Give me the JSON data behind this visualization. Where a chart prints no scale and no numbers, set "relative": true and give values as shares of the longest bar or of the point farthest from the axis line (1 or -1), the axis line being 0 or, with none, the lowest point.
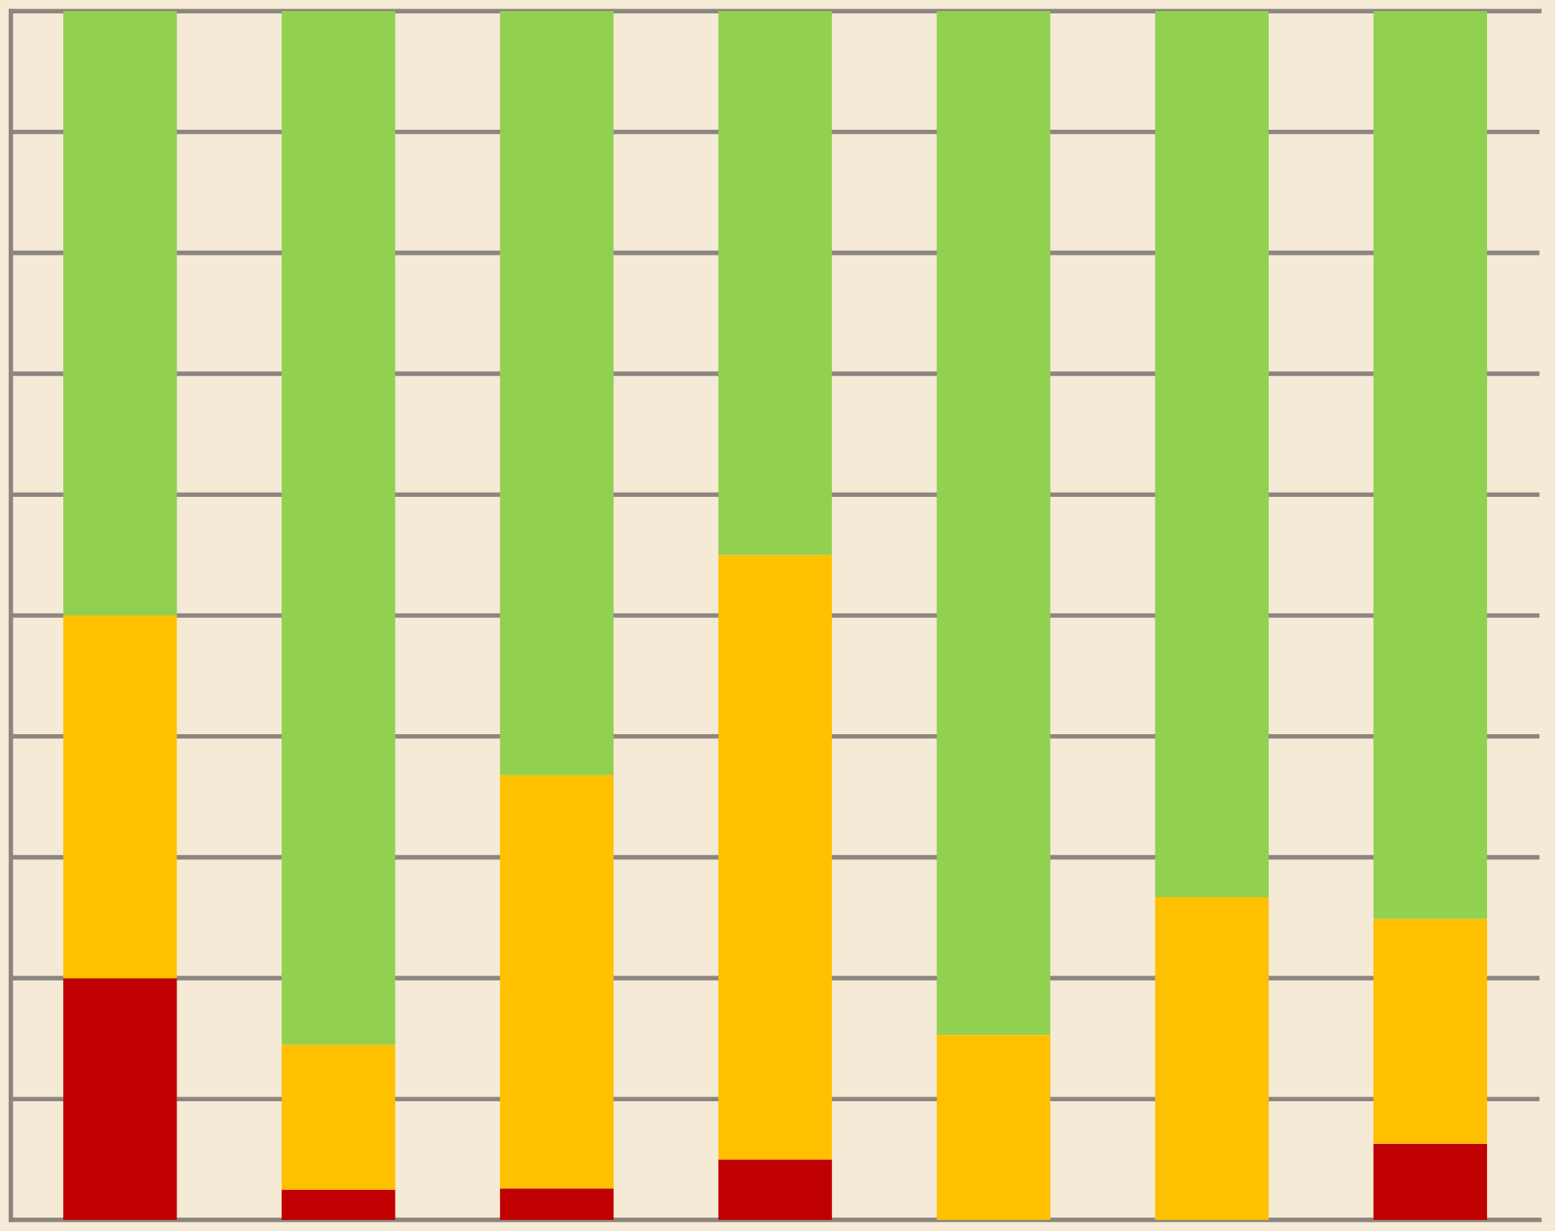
{
  "chart_data": {
    "type": "bar",
    "stacked": true,
    "relative": true,
    "categories": [
      null,
      null,
      null,
      null,
      null,
      null,
      null
    ],
    "series": [
      {
        "color": "#c00000",
        "values": [
          0.2,
          0.025,
          0.026,
          0.05,
          0,
          0,
          0.063
        ]
      },
      {
        "color": "#ffc000",
        "values": [
          0.3,
          0.12,
          0.342,
          0.5,
          0.153,
          0.267,
          0.186
        ]
      },
      {
        "color": "#92d050",
        "values": [
          0.5,
          0.855,
          0.632,
          0.45,
          0.847,
          0.733,
          0.751
        ]
      }
    ],
    "grid": "y"
  }
}
